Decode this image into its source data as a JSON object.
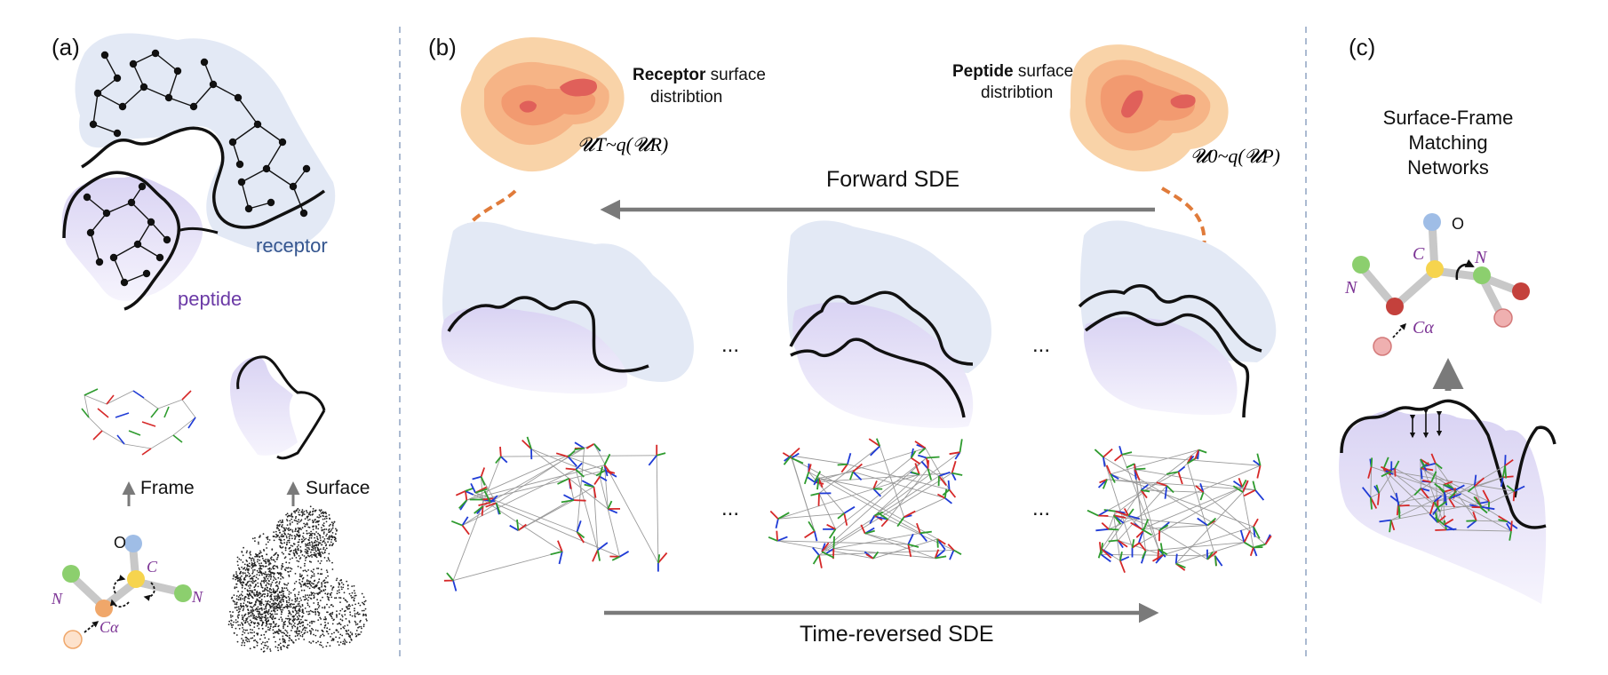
{
  "panels": {
    "a": {
      "label": "(a)",
      "receptor_label": "receptor",
      "peptide_label": "peptide",
      "frame_label": "Frame",
      "surface_label": "Surface",
      "atoms": {
        "O": "O",
        "C": "C",
        "N": "N",
        "Ca": "Cα"
      }
    },
    "b": {
      "label": "(b)",
      "receptor_title_bold": "Receptor",
      "receptor_title_rest": " surface",
      "receptor_title_line2": "distribtion",
      "receptor_formula": "𝓤T~q(𝓤R)",
      "peptide_title_bold": "Peptide",
      "peptide_title_rest": " surface",
      "peptide_title_line2": "distribtion",
      "peptide_formula": "𝓤0~q(𝓤P)",
      "forward_sde": "Forward SDE",
      "reverse_sde": "Time-reversed SDE",
      "ellipsis": "..."
    },
    "c": {
      "label": "(c)",
      "title_line1": "Surface-Frame",
      "title_line2": "Matching",
      "title_line3": "Networks",
      "atoms": {
        "O": "O",
        "C": "C",
        "N1": "N",
        "N2": "N",
        "Ca": "Cα"
      }
    }
  },
  "colors": {
    "receptor_fill": "#e3e9f5",
    "peptide_fill": "#ddd8f4",
    "receptor_text": "#34558f",
    "peptide_text": "#6b3aa6",
    "orange_arrow": "#e07b3a",
    "gray_arrow": "#7a7a7a",
    "divider": "#8fa3c2",
    "atom_text": "#7b3294"
  }
}
